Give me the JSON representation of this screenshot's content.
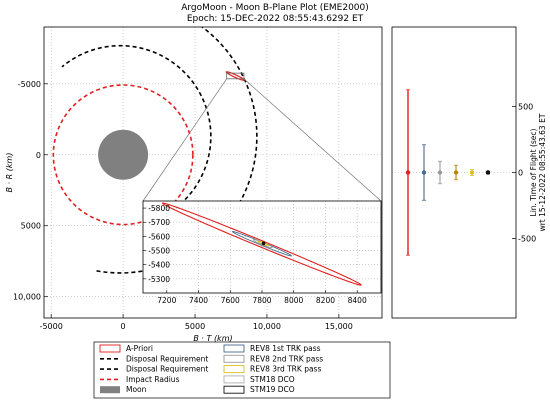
{
  "title_line1": "ArgoMoon - Moon B-Plane Plot (EME2000)",
  "title_line2": "Epoch: 15-DEC-2022 08:55:43.6292 ET",
  "chart_data": [
    {
      "id": "bplane-main",
      "type": "line",
      "xlabel": "B · T (km)",
      "ylabel": "B · R (km)",
      "xlim": [
        -5500,
        18000
      ],
      "ylim": [
        11500,
        -9000
      ],
      "y_inverted": true,
      "xticks": [
        {
          "value": -5000,
          "label": "-5000"
        },
        {
          "value": 0,
          "label": "0"
        },
        {
          "value": 5000,
          "label": "5000"
        },
        {
          "value": 10000,
          "label": "10,000"
        },
        {
          "value": 15000,
          "label": "15,000"
        }
      ],
      "yticks": [
        {
          "value": -5000,
          "label": "-5000"
        },
        {
          "value": 0,
          "label": "0"
        },
        {
          "value": 5000,
          "label": "5000"
        },
        {
          "value": 10000,
          "label": "10,000"
        }
      ],
      "grid": true,
      "moon": {
        "center": [
          0,
          0
        ],
        "radius": 1738
      },
      "impact_radius": {
        "center": [
          0,
          0
        ],
        "radius": 4850
      },
      "disposal_requirements": [
        {
          "center": [
            -200,
            -1300
          ],
          "r_outer": 9500,
          "r_inner": 6300
        }
      ],
      "apriori_zoom_box": {
        "x": [
          7200,
          8400
        ],
        "y": [
          -5750,
          -5350
        ]
      }
    },
    {
      "id": "bplane-zoom",
      "type": "scatter",
      "xlim": [
        7050,
        8550
      ],
      "ylim": [
        -5200,
        -5850
      ],
      "y_inverted": true,
      "xticks": [
        {
          "value": 7200,
          "label": "7200"
        },
        {
          "value": 7400,
          "label": "7400"
        },
        {
          "value": 7600,
          "label": "7600"
        },
        {
          "value": 7800,
          "label": "7800"
        },
        {
          "value": 8000,
          "label": "8000"
        },
        {
          "value": 8200,
          "label": "8200"
        },
        {
          "value": 8400,
          "label": "8400"
        }
      ],
      "yticks": [
        {
          "value": -5800,
          "label": "-5800"
        },
        {
          "value": -5700,
          "label": "-5700"
        },
        {
          "value": -5600,
          "label": "-5600"
        },
        {
          "value": -5500,
          "label": "-5500"
        },
        {
          "value": -5400,
          "label": "-5400"
        },
        {
          "value": -5300,
          "label": "-5300"
        }
      ],
      "grid": true,
      "ellipses": [
        {
          "name": "A-Priori",
          "color": "#e02020",
          "center": [
            7800,
            -5545
          ],
          "semi_major": 690,
          "semi_minor": 22,
          "angle_deg": 24.8
        },
        {
          "name": "REV8 1st TRK pass",
          "color": "#4a6a8a",
          "center": [
            7800,
            -5548
          ],
          "semi_major": 205,
          "semi_minor": 11,
          "angle_deg": 24.8
        },
        {
          "name": "REV8 2nd TRK pass",
          "color": "#9a9a9a",
          "center": [
            7805,
            -5549
          ],
          "semi_major": 65,
          "semi_minor": 9,
          "angle_deg": 24.8
        },
        {
          "name": "REV8 3rd TRK pass",
          "color": "#d8c020",
          "center": [
            7808,
            -5550
          ],
          "semi_major": 36,
          "semi_minor": 6,
          "angle_deg": 24.8
        }
      ],
      "points": [
        {
          "name": "STM19 DCO",
          "color": "#111111",
          "x": 7810,
          "y": -5551
        }
      ]
    },
    {
      "id": "time-of-flight",
      "type": "scatter",
      "ylabel_line1": "Lin. Time of Flight (sec)",
      "ylabel_line2": "wrt 15-12-2022 08:55:43.63 ET",
      "ylim": [
        -1100,
        1100
      ],
      "y_inverted": true,
      "yticks": [
        {
          "value": 500,
          "label": "500"
        },
        {
          "value": 0,
          "label": "0"
        },
        {
          "value": -500,
          "label": "-500"
        }
      ],
      "series": [
        {
          "name": "A-Priori",
          "color": "#e02020",
          "value": 0,
          "error": 625
        },
        {
          "name": "REV8 1st TRK pass",
          "color": "#4a6a8a",
          "value": 0,
          "error": 210
        },
        {
          "name": "REV8 2nd TRK pass",
          "color": "#9a9a9a",
          "value": 0,
          "error": 85
        },
        {
          "name": "REV8 3rd TRK pass",
          "color": "#b8860b",
          "value": 0,
          "error": 55
        },
        {
          "name": "STM18 DCO",
          "color": "#d8c020",
          "value": 0,
          "error": 22
        },
        {
          "name": "STM19 DCO",
          "color": "#111111",
          "value": 0,
          "error": 10
        }
      ]
    }
  ],
  "legend": {
    "placement": "bottom",
    "left_column": [
      {
        "label": "A-Priori",
        "kind": "rect",
        "color": "#e02020"
      },
      {
        "label": "Disposal Requirement",
        "kind": "dash",
        "color": "#000000"
      },
      {
        "label": "Disposal Requirement",
        "kind": "dash",
        "color": "#000000"
      },
      {
        "label": "Impact Radius",
        "kind": "dash",
        "color": "#e02020"
      },
      {
        "label": "Moon",
        "kind": "fill",
        "color": "#808080"
      }
    ],
    "right_column": [
      {
        "label": "REV8 1st TRK pass",
        "kind": "rect",
        "color": "#4a6a8a"
      },
      {
        "label": "REV8 2nd TRK pass",
        "kind": "rect",
        "color": "#9a9a9a"
      },
      {
        "label": "REV8 3rd TRK pass",
        "kind": "rect",
        "color": "#d8c020"
      },
      {
        "label": "STM18 DCO",
        "kind": "rect",
        "color": "#b0b0b0"
      },
      {
        "label": "STM19 DCO",
        "kind": "rect",
        "color": "#111111"
      }
    ]
  }
}
